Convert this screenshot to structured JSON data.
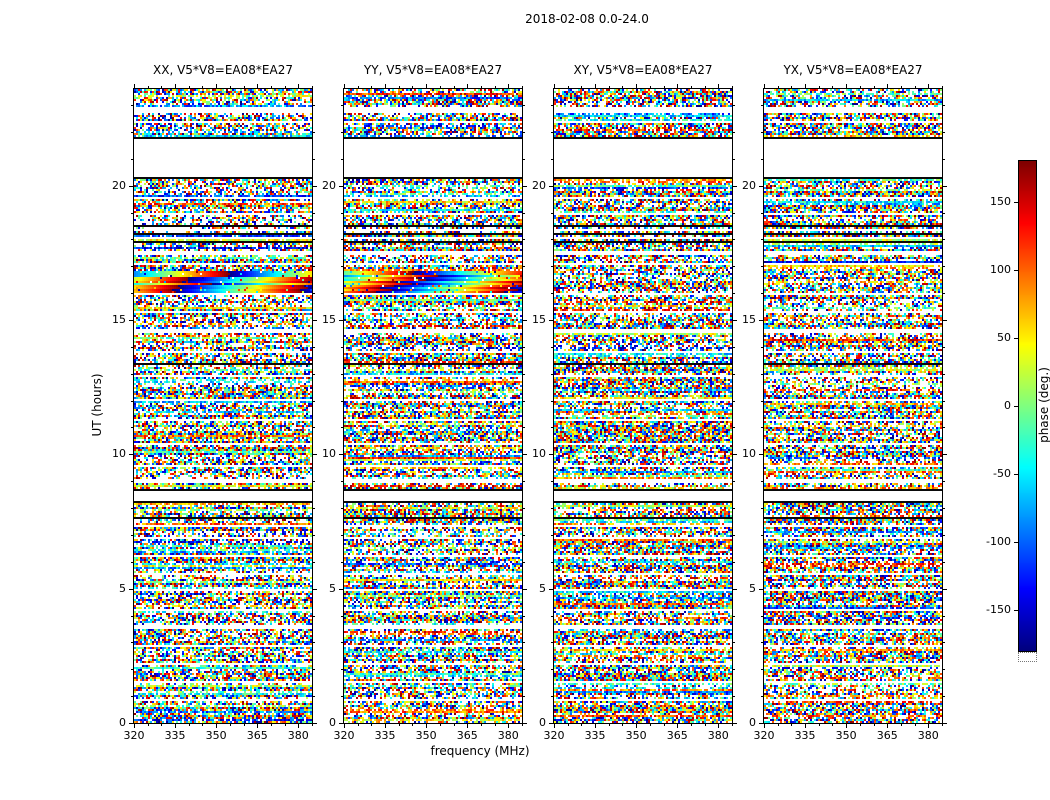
{
  "chart_data": {
    "type": "heatmap",
    "title": "2018-02-08 0.0-24.0",
    "panels": [
      {
        "pol": "XX",
        "title": "XX, V5*V8=EA08*EA27"
      },
      {
        "pol": "YY",
        "title": "YY, V5*V8=EA08*EA27"
      },
      {
        "pol": "XY",
        "title": "XY, V5*V8=EA08*EA27"
      },
      {
        "pol": "YX",
        "title": "YX, V5*V8=EA08*EA27"
      }
    ],
    "xlabel": "frequency (MHz)",
    "ylabel": "UT (hours)",
    "xlim": [
      320,
      385
    ],
    "ylim": [
      0,
      23.6
    ],
    "xticks": [
      320,
      335,
      350,
      365,
      380
    ],
    "xminor_step": 5,
    "yticks": [
      0,
      5,
      10,
      15,
      20
    ],
    "yminor_step": 1,
    "colorbar": {
      "label": "phase (deg.)",
      "ticks": [
        150,
        100,
        50,
        0,
        -50,
        -100,
        -150
      ],
      "vmin": -180,
      "vmax": 180,
      "colormap": "jet"
    },
    "content": {
      "description": "Interferometric visibility phase vs frequency and UT time; random wrapped-phase noise with horizontal data gaps",
      "data_gaps_hours": [
        [
          20.32,
          21.78
        ],
        [
          22.75,
          23.0
        ],
        [
          17.42,
          17.56
        ],
        [
          8.28,
          8.62
        ]
      ],
      "thin_white_lines_hours": [
        22.4,
        19.6,
        19.0,
        18.35,
        18.05,
        17.1,
        16.0,
        15.3,
        14.6,
        13.8,
        12.9,
        12.05,
        11.25,
        10.4,
        9.55,
        9.0,
        7.3,
        6.85,
        6.2,
        5.55,
        4.9,
        4.2,
        3.55,
        2.85,
        2.2,
        1.5,
        0.8
      ],
      "black_lines_hours": [
        21.82,
        20.3,
        18.5,
        18.2,
        17.95,
        13.4,
        8.66,
        8.24,
        7.62
      ],
      "smooth_phase_bands": {
        "panels": [
          0,
          1
        ],
        "ranges": [
          [
            16.05,
            16.85
          ]
        ]
      },
      "noise_seed": 42
    }
  }
}
